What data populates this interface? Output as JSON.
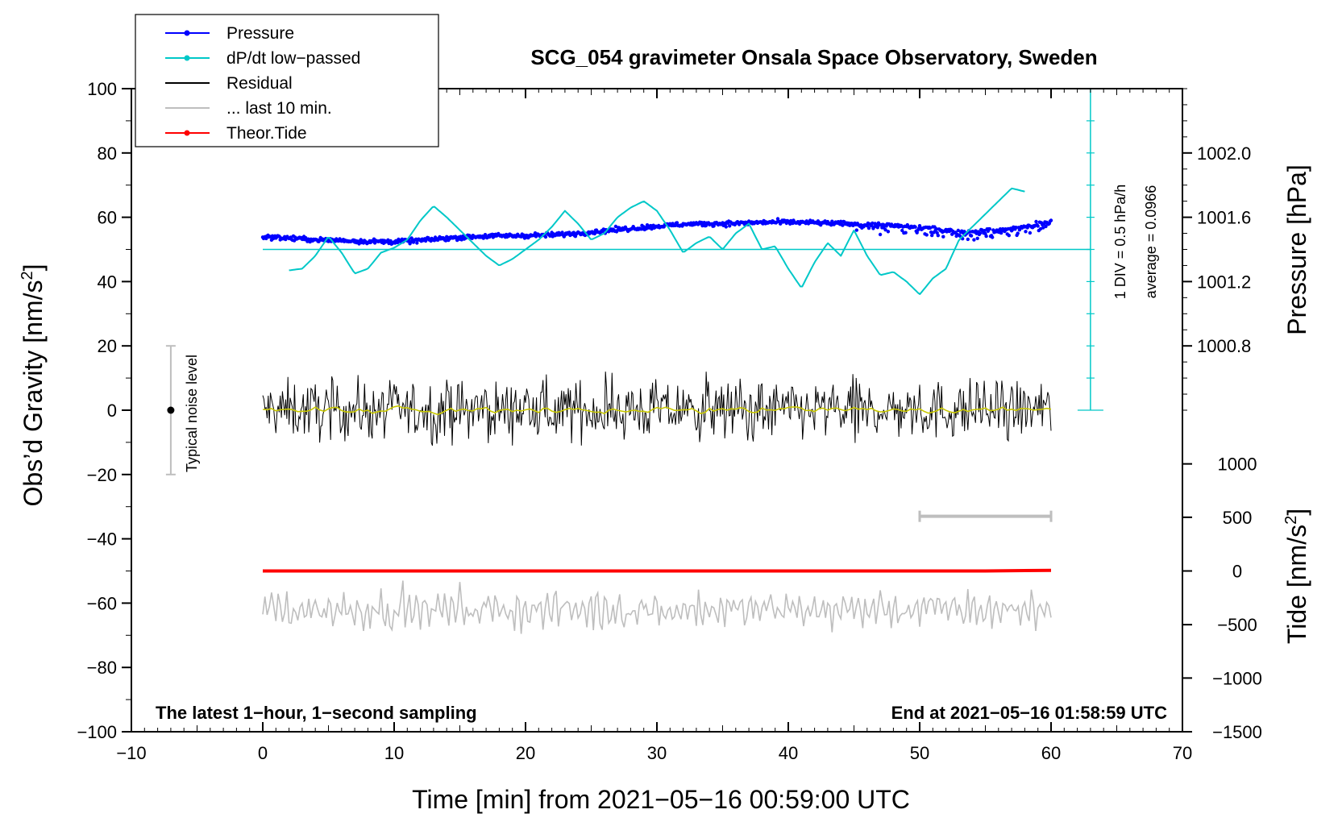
{
  "chart_data": {
    "type": "line",
    "title": "SCG_054 gravimeter Onsala Space Observatory, Sweden",
    "xlabel": "Time [min] from 2021−05−16 00:59:00 UTC",
    "ylabel_left": "Obs’d Gravity [nm/s",
    "ylabel_left_sup": "2",
    "ylabel_left_tail": "]",
    "ylabel_right_top": "Pressure [hPa]",
    "ylabel_right_bottom": "Tide [nm/s",
    "ylabel_right_bottom_sup": "2",
    "ylabel_right_bottom_tail": "]",
    "xlim": [
      -10,
      70
    ],
    "ylim": [
      -100,
      100
    ],
    "x_ticks": [
      -10,
      0,
      10,
      20,
      30,
      40,
      50,
      60,
      70
    ],
    "x_tick_labels": [
      "−10",
      "0",
      "10",
      "20",
      "30",
      "40",
      "50",
      "60",
      "70"
    ],
    "y_ticks": [
      100,
      80,
      60,
      40,
      20,
      0,
      -20,
      -40,
      -60,
      -80,
      -100
    ],
    "y_tick_labels": [
      "100",
      "80",
      "60",
      "40",
      "20",
      "0",
      "−20",
      "−40",
      "−60",
      "−80",
      "−100"
    ],
    "pressure_axis": {
      "tick_values_hpa": [
        1002.0,
        1001.6,
        1001.2,
        1000.8
      ],
      "tick_labels": [
        "1002.0",
        "1001.6",
        "1001.2",
        "1000.8"
      ],
      "tick_gravity_positions": [
        80,
        60,
        40,
        20
      ]
    },
    "tide_axis": {
      "tick_values": [
        1000,
        500,
        0,
        -500,
        -1000,
        -1500
      ],
      "tick_labels": [
        "1000",
        "500",
        "0",
        "−500",
        "−1000",
        "−1500"
      ],
      "tick_gravity_positions": [
        -16.7,
        -33.3,
        -50,
        -66.7,
        -83.3,
        -100
      ]
    },
    "legend": [
      {
        "label": "Pressure",
        "color": "#0000ff",
        "marker": true
      },
      {
        "label": "dP/dt low−passed",
        "color": "#00c8c8",
        "marker": true
      },
      {
        "label": "Residual",
        "color": "#000000",
        "marker": false
      },
      {
        "label": "... last 10 min.",
        "color": "#bebebe",
        "marker": false
      },
      {
        "label": "Theor.Tide",
        "color": "#ff0000",
        "marker": true
      }
    ],
    "series": [
      {
        "name": "Pressure",
        "color": "#0000ff",
        "x": [
          0,
          2,
          4,
          6,
          8,
          10,
          12,
          14,
          16,
          18,
          20,
          22,
          24,
          26,
          28,
          30,
          32,
          34,
          36,
          38,
          40,
          42,
          44,
          46,
          48,
          50,
          52,
          53,
          54,
          56,
          58,
          60
        ],
        "y": [
          54,
          53.5,
          53,
          52.8,
          52.5,
          52.4,
          52.8,
          53.5,
          54,
          54.2,
          54.3,
          54.5,
          55,
          55.8,
          56.5,
          57.2,
          57.8,
          58,
          58.1,
          58.4,
          58.5,
          58.3,
          58,
          57.8,
          57.5,
          56.8,
          56,
          55.2,
          55.5,
          56,
          57,
          58.5
        ]
      },
      {
        "name": "dP/dt low−passed",
        "color": "#00c8c8",
        "x": [
          2,
          3,
          4,
          5,
          6,
          7,
          8,
          9,
          10,
          11,
          12,
          13,
          14,
          15,
          16,
          17,
          18,
          19,
          20,
          21,
          22,
          23,
          24,
          25,
          26,
          27,
          28,
          29,
          30,
          31,
          32,
          33,
          34,
          35,
          36,
          37,
          38,
          39,
          40,
          41,
          42,
          43,
          44,
          45,
          46,
          47,
          48,
          49,
          50,
          51,
          52,
          53,
          54,
          55,
          56,
          57,
          58
        ],
        "y": [
          43.5,
          44,
          48,
          54,
          49,
          42.5,
          44,
          49,
          50.5,
          53,
          59,
          63.5,
          60,
          56,
          52,
          48,
          45,
          47,
          50,
          53,
          57,
          62,
          58,
          53,
          55,
          60,
          63,
          65,
          62,
          56,
          49,
          52,
          54,
          50,
          55,
          58,
          50,
          51,
          44,
          38,
          46,
          52,
          48,
          56,
          48,
          42,
          43,
          40,
          36,
          41,
          44,
          53,
          57,
          61,
          65,
          69,
          68
        ]
      },
      {
        "name": "Residual",
        "color": "#000000",
        "x_range": [
          0,
          60
        ],
        "y_center": 0,
        "amplitude": 5,
        "noise_band": [
          -11,
          12
        ]
      },
      {
        "name": "... last 10 min.",
        "color": "#bebebe",
        "x_range": [
          0,
          60
        ],
        "y_center": -62,
        "noise_band": [
          -71,
          -53
        ]
      },
      {
        "name": "Theor.Tide",
        "color": "#ff0000",
        "x": [
          0,
          30,
          55,
          60
        ],
        "y": [
          -50,
          -50,
          -50,
          -49.8
        ]
      }
    ],
    "dpdt_reference": {
      "zero_line_y": 50,
      "scale_label": "1 DIV = 0.5 hPa/h",
      "average_label": "average = 0.0966",
      "scale_x": 63,
      "scale_y_range": [
        0,
        100
      ]
    },
    "noise_level": {
      "label": "Typical noise level",
      "x": -7,
      "y": 0,
      "range": [
        -20,
        20
      ]
    },
    "last10_bar": {
      "x_range": [
        50,
        60
      ],
      "y": -33
    },
    "footer_left": "The latest 1−hour, 1−second sampling",
    "footer_right": "End at 2021−05−16 01:58:59 UTC"
  }
}
